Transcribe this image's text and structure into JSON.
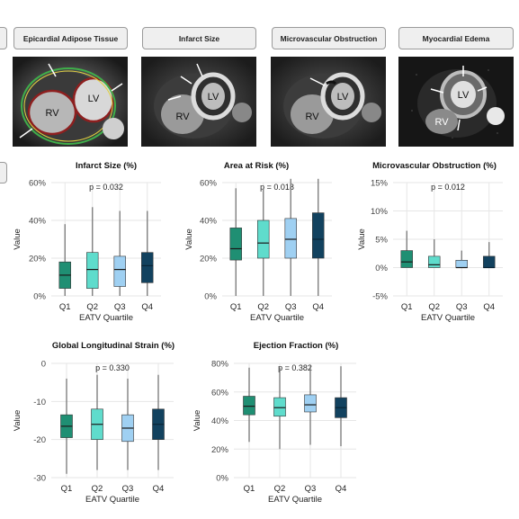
{
  "headers": [
    "Epicardial Adipose Tissue",
    "Infarct Size",
    "Microvascular Obstruction",
    "Myocardial Edema"
  ],
  "mri_labels": {
    "lv": "LV",
    "rv": "RV"
  },
  "colors": {
    "q1": "#1f8f73",
    "q2": "#5fdccc",
    "q3": "#9fd0f2",
    "q4": "#12425f",
    "grid": "#e6e6e6",
    "whisker": "#7f7f7f"
  },
  "chart_data": [
    {
      "type": "boxplot",
      "title": "Infarct Size (%)",
      "xlabel": "EATV Quartile",
      "ylabel": "Value",
      "p_value": "p = 0.032",
      "categories": [
        "Q1",
        "Q2",
        "Q3",
        "Q4"
      ],
      "ylim": [
        0,
        60
      ],
      "yticks": [
        0,
        20,
        40,
        60
      ],
      "ytick_labels": [
        "0%",
        "20%",
        "40%",
        "60%"
      ],
      "boxes": [
        {
          "min": 0,
          "q1": 4,
          "median": 11,
          "q3": 18,
          "max": 38
        },
        {
          "min": 0,
          "q1": 4,
          "median": 14,
          "q3": 23,
          "max": 47
        },
        {
          "min": 0,
          "q1": 5,
          "median": 14,
          "q3": 21,
          "max": 45
        },
        {
          "min": 0,
          "q1": 7,
          "median": 16,
          "q3": 23,
          "max": 45
        }
      ]
    },
    {
      "type": "boxplot",
      "title": "Area at Risk (%)",
      "xlabel": "EATV Quartile",
      "ylabel": "Value",
      "p_value": "p = 0.018",
      "categories": [
        "Q1",
        "Q2",
        "Q3",
        "Q4"
      ],
      "ylim": [
        0,
        60
      ],
      "yticks": [
        0,
        20,
        40,
        60
      ],
      "ytick_labels": [
        "0%",
        "20%",
        "40%",
        "60%"
      ],
      "boxes": [
        {
          "min": 0,
          "q1": 19,
          "median": 25,
          "q3": 36,
          "max": 57
        },
        {
          "min": 0,
          "q1": 20,
          "median": 28,
          "q3": 40,
          "max": 57
        },
        {
          "min": 0,
          "q1": 20,
          "median": 30,
          "q3": 41,
          "max": 62
        },
        {
          "min": 0,
          "q1": 20,
          "median": 30,
          "q3": 44,
          "max": 62
        }
      ]
    },
    {
      "type": "boxplot",
      "title": "Microvascular Obstruction (%)",
      "xlabel": "EATV Quartile",
      "ylabel": "Value",
      "p_value": "p = 0.012",
      "categories": [
        "Q1",
        "Q2",
        "Q3",
        "Q4"
      ],
      "ylim": [
        -5,
        15
      ],
      "yticks": [
        -5,
        0,
        5,
        10,
        15
      ],
      "ytick_labels": [
        "-5%",
        "0%",
        "5%",
        "10%",
        "15%"
      ],
      "boxes": [
        {
          "min": 0,
          "q1": 0,
          "median": 1,
          "q3": 3,
          "max": 6.5
        },
        {
          "min": 0,
          "q1": 0,
          "median": 0.5,
          "q3": 2,
          "max": 5
        },
        {
          "min": 0,
          "q1": 0,
          "median": 0,
          "q3": 1.3,
          "max": 3
        },
        {
          "min": 0,
          "q1": 0,
          "median": 0,
          "q3": 2,
          "max": 4.5
        }
      ]
    },
    {
      "type": "boxplot",
      "title": "Global Longitudinal Strain (%)",
      "xlabel": "EATV Quartile",
      "ylabel": "Value",
      "p_value": "p = 0.330",
      "categories": [
        "Q1",
        "Q2",
        "Q3",
        "Q4"
      ],
      "ylim": [
        -30,
        0
      ],
      "yticks": [
        -30,
        -20,
        -10,
        0
      ],
      "ytick_labels": [
        "-30",
        "-20",
        "-10",
        "0"
      ],
      "boxes": [
        {
          "min": -29,
          "q1": -19.5,
          "median": -16.5,
          "q3": -13.5,
          "max": -4
        },
        {
          "min": -28,
          "q1": -20,
          "median": -16,
          "q3": -12,
          "max": -3
        },
        {
          "min": -28,
          "q1": -20.5,
          "median": -17,
          "q3": -13.5,
          "max": -4
        },
        {
          "min": -28,
          "q1": -20,
          "median": -16,
          "q3": -12,
          "max": -3
        }
      ]
    },
    {
      "type": "boxplot",
      "title": "Ejection Fraction (%)",
      "xlabel": "EATV Quartile",
      "ylabel": "Value",
      "p_value": "p = 0.382",
      "categories": [
        "Q1",
        "Q2",
        "Q3",
        "Q4"
      ],
      "ylim": [
        0,
        80
      ],
      "yticks": [
        0,
        20,
        40,
        60,
        80
      ],
      "ytick_labels": [
        "0%",
        "20%",
        "40%",
        "60%",
        "80%"
      ],
      "boxes": [
        {
          "min": 25,
          "q1": 44,
          "median": 50,
          "q3": 57,
          "max": 77
        },
        {
          "min": 20,
          "q1": 43,
          "median": 49,
          "q3": 56,
          "max": 77
        },
        {
          "min": 23,
          "q1": 46,
          "median": 51,
          "q3": 58,
          "max": 78
        },
        {
          "min": 22,
          "q1": 42,
          "median": 49,
          "q3": 56,
          "max": 78
        }
      ]
    }
  ]
}
